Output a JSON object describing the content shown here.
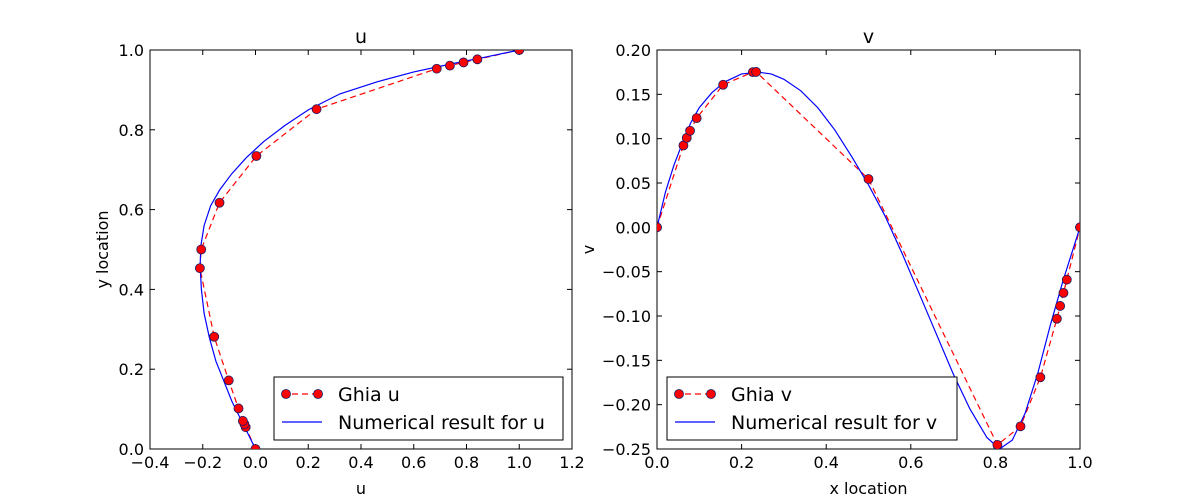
{
  "chart_data": [
    {
      "type": "line",
      "title": "u",
      "xlabel": "u",
      "ylabel": "y location",
      "xlim": [
        -0.4,
        1.2
      ],
      "ylim": [
        0.0,
        1.0
      ],
      "xticks": [
        -0.4,
        -0.2,
        0.0,
        0.2,
        0.4,
        0.6,
        0.8,
        1.0,
        1.2
      ],
      "yticks": [
        0.0,
        0.2,
        0.4,
        0.6,
        0.8,
        1.0
      ],
      "xtick_labels": [
        "−0.4",
        "−0.2",
        "0.0",
        "0.2",
        "0.4",
        "0.6",
        "0.8",
        "1.0",
        "1.2"
      ],
      "ytick_labels": [
        "0.0",
        "0.2",
        "0.4",
        "0.6",
        "0.8",
        "1.0"
      ],
      "grid": false,
      "legend_position": "lower-right",
      "series": [
        {
          "name": "Ghia u",
          "style": "dashed-with-markers",
          "color": "#ff0000",
          "marker_color": "#ff0000",
          "x": [
            0.0,
            -0.03717,
            -0.04192,
            -0.04775,
            -0.06434,
            -0.1015,
            -0.15662,
            -0.2109,
            -0.20581,
            -0.13641,
            0.00332,
            0.23151,
            0.68717,
            0.73722,
            0.78871,
            0.84123,
            1.0
          ],
          "y": [
            0.0,
            0.0547,
            0.0625,
            0.0703,
            0.1016,
            0.1719,
            0.2813,
            0.4531,
            0.5,
            0.6172,
            0.7344,
            0.8516,
            0.9531,
            0.9609,
            0.9688,
            0.9766,
            1.0
          ]
        },
        {
          "name": "Numerical result for u",
          "style": "solid",
          "color": "#0000ff",
          "x": [
            0.0,
            -0.03,
            -0.06,
            -0.09,
            -0.12,
            -0.15,
            -0.175,
            -0.195,
            -0.205,
            -0.21,
            -0.207,
            -0.195,
            -0.17,
            -0.135,
            -0.09,
            -0.035,
            0.03,
            0.11,
            0.2,
            0.32,
            0.46,
            0.6,
            0.74,
            0.87,
            1.0
          ],
          "y": [
            0.0,
            0.04,
            0.08,
            0.12,
            0.17,
            0.22,
            0.28,
            0.34,
            0.4,
            0.46,
            0.51,
            0.56,
            0.61,
            0.65,
            0.69,
            0.73,
            0.77,
            0.81,
            0.85,
            0.89,
            0.92,
            0.945,
            0.965,
            0.982,
            1.0
          ]
        }
      ]
    },
    {
      "type": "line",
      "title": "v",
      "xlabel": "x location",
      "ylabel": "v",
      "xlim": [
        0.0,
        1.0
      ],
      "ylim": [
        -0.25,
        0.2
      ],
      "xticks": [
        0.0,
        0.2,
        0.4,
        0.6,
        0.8,
        1.0
      ],
      "yticks": [
        -0.25,
        -0.2,
        -0.15,
        -0.1,
        -0.05,
        0.0,
        0.05,
        0.1,
        0.15,
        0.2
      ],
      "xtick_labels": [
        "0.0",
        "0.2",
        "0.4",
        "0.6",
        "0.8",
        "1.0"
      ],
      "ytick_labels": [
        "−0.25",
        "−0.20",
        "−0.15",
        "−0.10",
        "−0.05",
        "0.00",
        "0.05",
        "0.10",
        "0.15",
        "0.20"
      ],
      "grid": false,
      "legend_position": "lower-left",
      "series": [
        {
          "name": "Ghia v",
          "style": "dashed-with-markers",
          "color": "#ff0000",
          "marker_color": "#ff0000",
          "x": [
            0.0,
            0.0625,
            0.0703,
            0.0781,
            0.0938,
            0.1563,
            0.2266,
            0.2344,
            0.5,
            0.8047,
            0.8594,
            0.9063,
            0.9453,
            0.9531,
            0.9609,
            0.9688,
            1.0
          ],
          "y": [
            0.0,
            0.09233,
            0.10091,
            0.1089,
            0.12317,
            0.16077,
            0.17507,
            0.17527,
            0.05454,
            -0.24533,
            -0.22445,
            -0.16914,
            -0.10313,
            -0.08864,
            -0.07391,
            -0.05906,
            0.0
          ]
        },
        {
          "name": "Numerical result for v",
          "style": "solid",
          "color": "#0000ff",
          "x": [
            0.0,
            0.02,
            0.04,
            0.06,
            0.08,
            0.1,
            0.13,
            0.16,
            0.2,
            0.24,
            0.27,
            0.3,
            0.34,
            0.38,
            0.42,
            0.46,
            0.5,
            0.54,
            0.58,
            0.62,
            0.66,
            0.7,
            0.74,
            0.78,
            0.81,
            0.84,
            0.87,
            0.9,
            0.93,
            0.96,
            0.98,
            1.0
          ],
          "y": [
            0.0,
            0.04,
            0.07,
            0.095,
            0.118,
            0.135,
            0.152,
            0.164,
            0.173,
            0.175,
            0.173,
            0.167,
            0.154,
            0.135,
            0.11,
            0.08,
            0.048,
            0.012,
            -0.03,
            -0.075,
            -0.12,
            -0.165,
            -0.205,
            -0.237,
            -0.25,
            -0.24,
            -0.21,
            -0.165,
            -0.11,
            -0.06,
            -0.03,
            0.0
          ]
        }
      ]
    }
  ]
}
